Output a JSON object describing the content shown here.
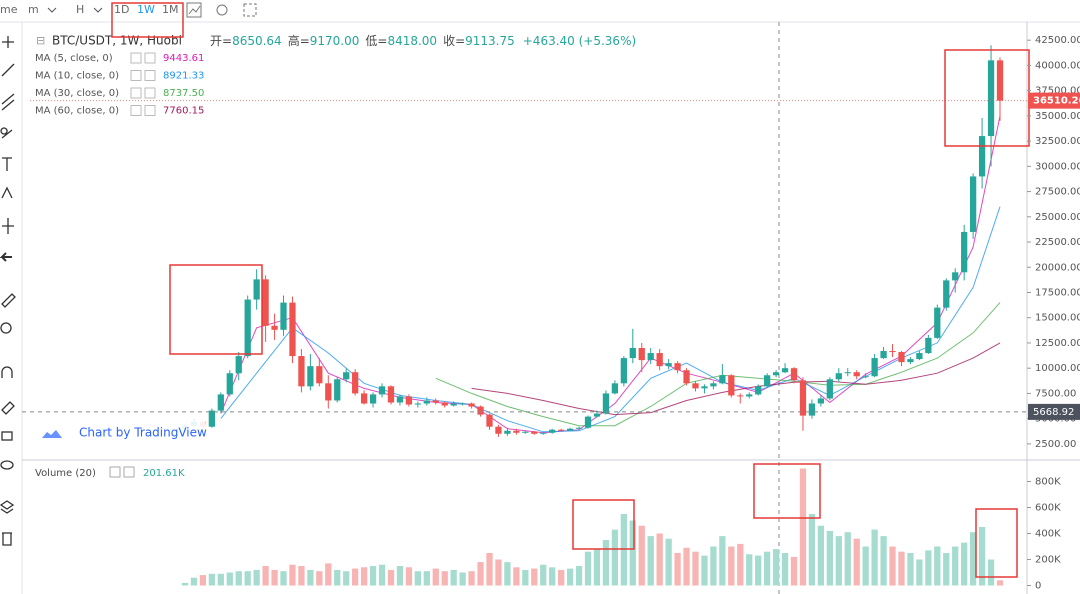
{
  "toolbar": {
    "items": [
      "me",
      "m",
      "H",
      "1D",
      "1W",
      "1M"
    ]
  },
  "legend": {
    "symbol": "BTC/USDT, 1W, Huobi",
    "fields": [
      {
        "label": "开=",
        "value": "8650.64"
      },
      {
        "label": "高=",
        "value": "9170.00"
      },
      {
        "label": "低=",
        "value": "8418.00"
      },
      {
        "label": "收=",
        "value": "9113.75"
      }
    ],
    "change": "+463.40 (+5.36%)"
  },
  "watermark": "Chart by TradingView",
  "volume_legend": {
    "label": "Volume (20)",
    "value": "201.61K"
  },
  "chart_data": {
    "type": "candlestick",
    "up_color": "#26a69a",
    "down_color": "#ef5350",
    "volume_up_color": "#a5dccf",
    "volume_down_color": "#f7b4b3",
    "ylim": [
      1100,
      44500
    ],
    "yticks": [
      {
        "value": 2500,
        "label": "2500.00"
      },
      {
        "value": 5000,
        "label": "5000.00"
      },
      {
        "value": 7500,
        "label": "7500.00"
      },
      {
        "value": 10000,
        "label": "10000.00"
      },
      {
        "value": 12500,
        "label": "12500.00"
      },
      {
        "value": 15000,
        "label": "15000.00"
      },
      {
        "value": 17500,
        "label": "17500.00"
      },
      {
        "value": 20000,
        "label": "20000.00"
      },
      {
        "value": 22500,
        "label": "22500.00"
      },
      {
        "value": 25000,
        "label": "25000.00"
      },
      {
        "value": 27500,
        "label": "27500.00"
      },
      {
        "value": 30000,
        "label": "30000.00"
      },
      {
        "value": 32500,
        "label": "32500.00"
      },
      {
        "value": 35000,
        "label": "35000.00"
      },
      {
        "value": 37500,
        "label": "37500.00"
      },
      {
        "value": 40000,
        "label": "40000.00"
      },
      {
        "value": 42500,
        "label": "42500.00"
      }
    ],
    "last_price": 36510.26,
    "crosshair_price": 5668.92,
    "volume_ylim": [
      -50000,
      950000
    ],
    "volume_yticks": [
      0,
      {
        "value": 200000,
        "label": "200K"
      },
      {
        "value": 400000,
        "label": "400K"
      },
      {
        "value": 600000,
        "label": "600K"
      },
      {
        "value": 800000,
        "label": "800K"
      }
    ],
    "ohlc": [
      [
        4000,
        4500,
        3900,
        4300
      ],
      [
        4300,
        4900,
        4200,
        4700
      ],
      [
        4700,
        4800,
        3900,
        4200
      ],
      [
        4200,
        6000,
        4100,
        5800
      ],
      [
        5800,
        7600,
        5600,
        7400
      ],
      [
        7400,
        9800,
        7200,
        9500
      ],
      [
        9500,
        11600,
        8800,
        11200
      ],
      [
        11200,
        17200,
        11000,
        16800
      ],
      [
        16800,
        19800,
        15800,
        18800
      ],
      [
        18800,
        19200,
        12600,
        14200
      ],
      [
        14200,
        15400,
        12800,
        13800
      ],
      [
        13800,
        17200,
        13200,
        16500
      ],
      [
        16500,
        17100,
        10500,
        11200
      ],
      [
        11200,
        11900,
        7600,
        8200
      ],
      [
        8200,
        11400,
        7800,
        10200
      ],
      [
        10200,
        11000,
        8200,
        8500
      ],
      [
        8500,
        9300,
        6000,
        6800
      ],
      [
        6800,
        9100,
        6600,
        8900
      ],
      [
        8900,
        10000,
        8600,
        9600
      ],
      [
        9600,
        9900,
        7300,
        7500
      ],
      [
        7500,
        7800,
        6400,
        6500
      ],
      [
        6500,
        7600,
        6100,
        7400
      ],
      [
        7400,
        8500,
        7100,
        8200
      ],
      [
        8200,
        8300,
        6400,
        6600
      ],
      [
        6600,
        7400,
        6300,
        7200
      ],
      [
        7200,
        7400,
        6200,
        6400
      ],
      [
        6400,
        6700,
        6100,
        6500
      ],
      [
        6500,
        7100,
        6300,
        6800
      ],
      [
        6800,
        7000,
        6400,
        6600
      ],
      [
        6600,
        6700,
        6100,
        6300
      ],
      [
        6300,
        6700,
        6200,
        6500
      ],
      [
        6500,
        6600,
        6300,
        6500
      ],
      [
        6500,
        6600,
        6000,
        6200
      ],
      [
        6200,
        6300,
        5200,
        5400
      ],
      [
        5400,
        5500,
        3900,
        4200
      ],
      [
        4200,
        4400,
        3200,
        3500
      ],
      [
        3500,
        4100,
        3300,
        3800
      ],
      [
        3800,
        4000,
        3400,
        3600
      ],
      [
        3600,
        3800,
        3500,
        3700
      ],
      [
        3700,
        3800,
        3400,
        3500
      ],
      [
        3500,
        3700,
        3400,
        3600
      ],
      [
        3600,
        4000,
        3500,
        3900
      ],
      [
        3900,
        4000,
        3700,
        3800
      ],
      [
        3800,
        4100,
        3800,
        4000
      ],
      [
        4000,
        4200,
        3900,
        4100
      ],
      [
        4100,
        5300,
        4000,
        5200
      ],
      [
        5200,
        5800,
        5100,
        5500
      ],
      [
        5500,
        7800,
        5400,
        7500
      ],
      [
        7500,
        8800,
        7400,
        8500
      ],
      [
        8500,
        11200,
        8200,
        11000
      ],
      [
        11000,
        13900,
        10500,
        12000
      ],
      [
        12000,
        12500,
        9600,
        10800
      ],
      [
        10800,
        12000,
        10400,
        11500
      ],
      [
        11500,
        11900,
        9800,
        10200
      ],
      [
        10200,
        10900,
        9900,
        10500
      ],
      [
        10500,
        10700,
        9500,
        9800
      ],
      [
        9800,
        10000,
        8300,
        8500
      ],
      [
        8500,
        8700,
        7700,
        8000
      ],
      [
        8000,
        8400,
        7500,
        8200
      ],
      [
        8200,
        8700,
        7900,
        8500
      ],
      [
        8500,
        10400,
        8400,
        9300
      ],
      [
        9300,
        9400,
        7100,
        7300
      ],
      [
        7300,
        7500,
        6500,
        7200
      ],
      [
        7200,
        7600,
        7000,
        7400
      ],
      [
        7400,
        8400,
        7300,
        8200
      ],
      [
        8200,
        9500,
        8100,
        9300
      ],
      [
        9300,
        9800,
        9100,
        9600
      ],
      [
        9600,
        10500,
        9500,
        10000
      ],
      [
        10000,
        10100,
        8500,
        8800
      ],
      [
        8800,
        9100,
        3800,
        5300
      ],
      [
        5300,
        6900,
        5000,
        6500
      ],
      [
        6500,
        7300,
        6200,
        7000
      ],
      [
        7000,
        9100,
        6800,
        8900
      ],
      [
        8900,
        10000,
        8600,
        9500
      ],
      [
        9500,
        10000,
        9200,
        9600
      ],
      [
        9600,
        9800,
        8900,
        9200
      ],
      [
        9200,
        9500,
        9000,
        9200
      ],
      [
        9200,
        11400,
        9100,
        11000
      ],
      [
        11000,
        12100,
        10900,
        11700
      ],
      [
        11700,
        12400,
        11100,
        11600
      ],
      [
        11600,
        11700,
        10200,
        10600
      ],
      [
        10600,
        11100,
        10400,
        10900
      ],
      [
        10900,
        11700,
        10800,
        11500
      ],
      [
        11500,
        13300,
        11400,
        13000
      ],
      [
        13000,
        16300,
        12900,
        16000
      ],
      [
        16000,
        18900,
        15700,
        18700
      ],
      [
        18700,
        19900,
        17500,
        19500
      ],
      [
        19500,
        24200,
        18700,
        23500
      ],
      [
        23500,
        29300,
        22800,
        29000
      ],
      [
        29000,
        34800,
        27800,
        33000
      ],
      [
        33000,
        42000,
        30000,
        40500
      ],
      [
        40500,
        40800,
        34500,
        36510.26
      ]
    ],
    "volume": [
      20000,
      60000,
      80000,
      90000,
      90000,
      100000,
      110000,
      110000,
      120000,
      150000,
      120000,
      110000,
      160000,
      150000,
      120000,
      110000,
      170000,
      120000,
      110000,
      130000,
      140000,
      150000,
      160000,
      120000,
      150000,
      140000,
      110000,
      110000,
      130000,
      110000,
      120000,
      100000,
      110000,
      180000,
      250000,
      200000,
      180000,
      140000,
      120000,
      130000,
      160000,
      140000,
      120000,
      130000,
      150000,
      260000,
      280000,
      350000,
      430000,
      550000,
      500000,
      460000,
      380000,
      400000,
      360000,
      250000,
      290000,
      260000,
      230000,
      300000,
      380000,
      300000,
      320000,
      240000,
      230000,
      260000,
      280000,
      250000,
      220000,
      900000,
      550000,
      460000,
      420000,
      380000,
      410000,
      360000,
      300000,
      430000,
      380000,
      300000,
      260000,
      250000,
      200000,
      270000,
      300000,
      250000,
      300000,
      330000,
      410000,
      450000,
      200000,
      40000
    ],
    "ma_x": [
      4,
      8,
      12,
      16,
      20,
      24,
      28,
      32,
      36,
      40,
      44,
      48,
      52,
      56,
      60,
      64,
      68,
      72,
      76,
      80,
      84,
      88,
      91
    ],
    "ma": [
      {
        "label": "MA (5, close, 0)",
        "value": "9443.61",
        "color": "#d81bb8",
        "values": [
          5500,
          14000,
          15000,
          9500,
          8000,
          7100,
          6600,
          6400,
          4000,
          3600,
          3900,
          6500,
          11000,
          9500,
          8600,
          7600,
          9500,
          6600,
          9400,
          11200,
          14500,
          22000,
          35000
        ]
      },
      {
        "label": "MA (10, close, 0)",
        "value": "8921.33",
        "color": "#2196f3",
        "values": [
          5000,
          9500,
          14000,
          11500,
          8500,
          7300,
          6800,
          6400,
          4800,
          3700,
          3800,
          5200,
          9000,
          10500,
          8600,
          7800,
          9000,
          7300,
          9200,
          11000,
          12500,
          18000,
          26000
        ]
      },
      {
        "label": "MA (30, close, 0)",
        "value": "8737.50",
        "color": "#4caf50",
        "values": [
          null,
          null,
          null,
          null,
          null,
          null,
          9000,
          7500,
          6200,
          5200,
          4300,
          4300,
          6200,
          8500,
          9300,
          9000,
          8700,
          8300,
          8400,
          9600,
          11000,
          13500,
          16500
        ]
      },
      {
        "label": "MA (60, close, 0)",
        "value": "7760.15",
        "color": "#a0185c",
        "values": [
          null,
          null,
          null,
          null,
          null,
          null,
          null,
          8000,
          7500,
          6800,
          6000,
          5400,
          5600,
          6800,
          7600,
          8200,
          8600,
          8700,
          8400,
          8800,
          9500,
          11000,
          12500
        ]
      }
    ]
  }
}
